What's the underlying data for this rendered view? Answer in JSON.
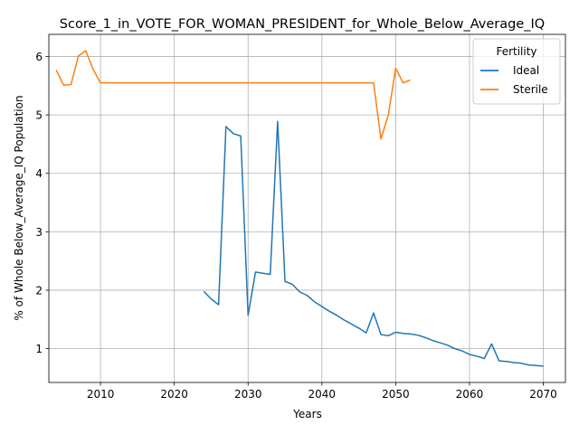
{
  "chart_data": {
    "type": "line",
    "title": "Score_1_in_VOTE_FOR_WOMAN_PRESIDENT_for_Whole_Below_Average_IQ",
    "xlabel": "Years",
    "ylabel": "% of Whole Below_Average_IQ Population",
    "xlim": [
      2003,
      2073
    ],
    "ylim": [
      0.42,
      6.38
    ],
    "xticks": [
      2010,
      2020,
      2030,
      2040,
      2050,
      2060,
      2070
    ],
    "yticks": [
      1,
      2,
      3,
      4,
      5,
      6
    ],
    "grid": true,
    "legend": {
      "title": "Fertility",
      "placement": "top-right"
    },
    "series": [
      {
        "name": "Ideal",
        "color": "#1f77b4",
        "points": [
          [
            2024,
            1.98
          ],
          [
            2025,
            1.85
          ],
          [
            2026,
            1.75
          ],
          [
            2027,
            4.8
          ],
          [
            2028,
            4.68
          ],
          [
            2029,
            4.64
          ],
          [
            2030,
            1.57
          ],
          [
            2031,
            2.31
          ],
          [
            2032,
            2.29
          ],
          [
            2033,
            2.27
          ],
          [
            2034,
            4.89
          ],
          [
            2035,
            2.15
          ],
          [
            2036,
            2.1
          ],
          [
            2037,
            1.97
          ],
          [
            2038,
            1.91
          ],
          [
            2039,
            1.8
          ],
          [
            2040,
            1.72
          ],
          [
            2041,
            1.64
          ],
          [
            2042,
            1.57
          ],
          [
            2043,
            1.49
          ],
          [
            2044,
            1.42
          ],
          [
            2045,
            1.35
          ],
          [
            2046,
            1.27
          ],
          [
            2047,
            1.61
          ],
          [
            2048,
            1.24
          ],
          [
            2049,
            1.22
          ],
          [
            2050,
            1.28
          ],
          [
            2051,
            1.26
          ],
          [
            2052,
            1.25
          ],
          [
            2053,
            1.23
          ],
          [
            2054,
            1.19
          ],
          [
            2055,
            1.14
          ],
          [
            2056,
            1.1
          ],
          [
            2057,
            1.06
          ],
          [
            2058,
            1.0
          ],
          [
            2059,
            0.96
          ],
          [
            2060,
            0.9
          ],
          [
            2061,
            0.87
          ],
          [
            2062,
            0.83
          ],
          [
            2063,
            1.08
          ],
          [
            2064,
            0.79
          ],
          [
            2065,
            0.78
          ],
          [
            2066,
            0.76
          ],
          [
            2067,
            0.75
          ],
          [
            2068,
            0.72
          ],
          [
            2069,
            0.71
          ],
          [
            2070,
            0.7
          ]
        ]
      },
      {
        "name": "Sterile",
        "color": "#ff7f0e",
        "points": [
          [
            2004,
            5.77
          ],
          [
            2005,
            5.51
          ],
          [
            2006,
            5.52
          ],
          [
            2007,
            6.01
          ],
          [
            2008,
            6.1
          ],
          [
            2009,
            5.78
          ],
          [
            2010,
            5.55
          ],
          [
            2015,
            5.55
          ],
          [
            2020,
            5.55
          ],
          [
            2025,
            5.55
          ],
          [
            2030,
            5.55
          ],
          [
            2035,
            5.55
          ],
          [
            2040,
            5.55
          ],
          [
            2045,
            5.55
          ],
          [
            2047,
            5.55
          ],
          [
            2048,
            4.59
          ],
          [
            2049,
            5.0
          ],
          [
            2050,
            5.8
          ],
          [
            2051,
            5.55
          ],
          [
            2052,
            5.6
          ]
        ]
      }
    ]
  }
}
